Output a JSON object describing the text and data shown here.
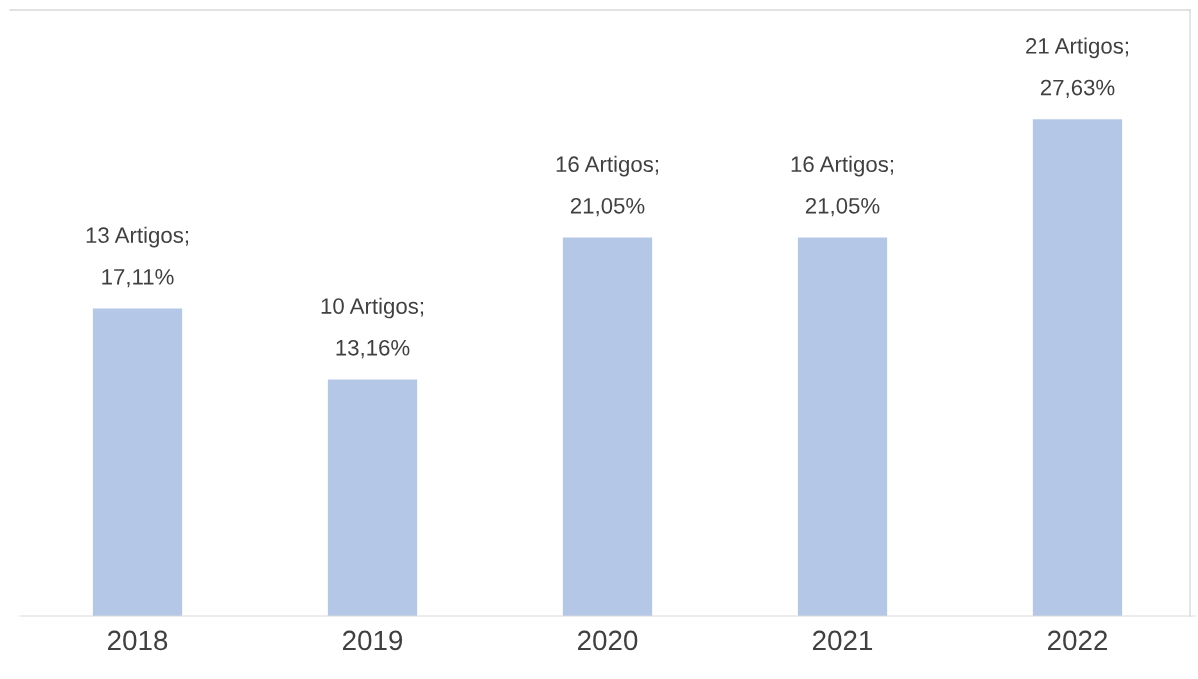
{
  "chart_data": {
    "type": "bar",
    "categories": [
      "2018",
      "2019",
      "2020",
      "2021",
      "2022"
    ],
    "values": [
      13,
      10,
      16,
      16,
      21
    ],
    "value_labels": [
      "13 Artigos;\n17,11%",
      "10 Artigos;\n13,16%",
      "16 Artigos;\n21,05%",
      "16 Artigos;\n21,05%",
      "21 Artigos;\n27,63%"
    ],
    "color": "#b4c7e7",
    "grid": false,
    "legend": false
  }
}
